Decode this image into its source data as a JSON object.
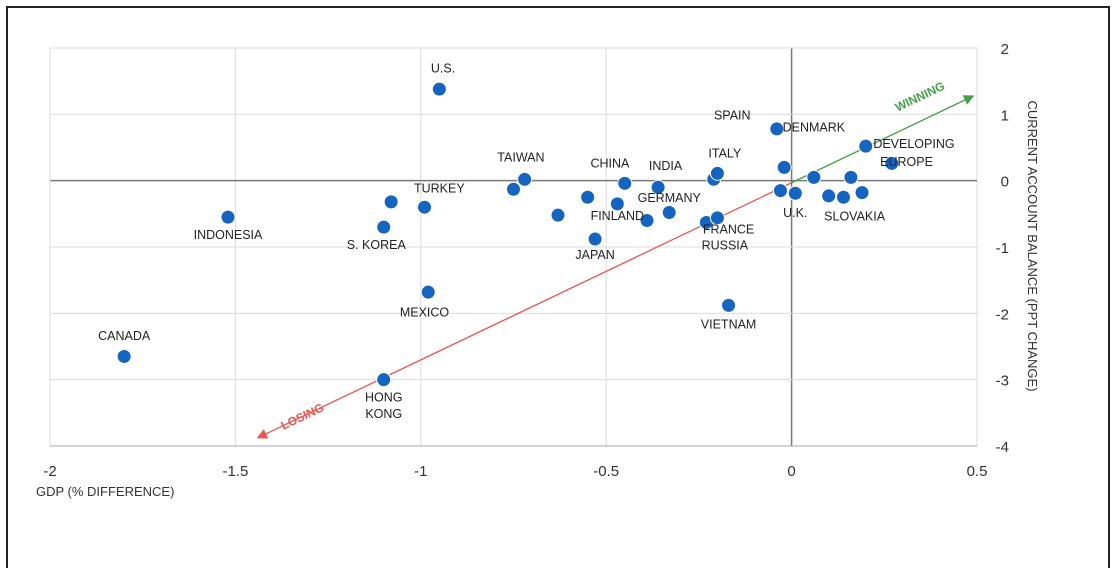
{
  "chart_data": {
    "type": "scatter",
    "xlabel": "GDP (% DIFFERENCE)",
    "ylabel": "CURRENT ACCOUNT BALANCE (PPT CHANGE)",
    "xlim": [
      -2,
      0.5
    ],
    "ylim": [
      -4,
      2
    ],
    "xticks": [
      -2,
      -1.5,
      -1,
      -0.5,
      0,
      0.5
    ],
    "xtick_labels": [
      "-2",
      "-1.5",
      "-1",
      "-0.5",
      "0",
      "0.5"
    ],
    "yticks": [
      2,
      1,
      0,
      -1,
      -2,
      -3,
      -4
    ],
    "ytick_labels": [
      "2",
      "1",
      "0",
      "-1",
      "-2",
      "-3",
      "-4"
    ],
    "grid": true,
    "point_color": "#1565c0",
    "points": [
      {
        "x": -1.8,
        "y": -2.65
      },
      {
        "x": -1.52,
        "y": -0.55
      },
      {
        "x": -1.1,
        "y": -0.7
      },
      {
        "x": -1.08,
        "y": -0.32
      },
      {
        "x": -0.99,
        "y": -0.4
      },
      {
        "x": -0.98,
        "y": -1.68
      },
      {
        "x": -0.95,
        "y": 1.38
      },
      {
        "x": -1.1,
        "y": -3.0
      },
      {
        "x": -0.75,
        "y": -0.13
      },
      {
        "x": -0.72,
        "y": 0.02
      },
      {
        "x": -0.63,
        "y": -0.52
      },
      {
        "x": -0.55,
        "y": -0.25
      },
      {
        "x": -0.53,
        "y": -0.88
      },
      {
        "x": -0.47,
        "y": -0.35
      },
      {
        "x": -0.45,
        "y": -0.04
      },
      {
        "x": -0.39,
        "y": -0.6
      },
      {
        "x": -0.36,
        "y": -0.1
      },
      {
        "x": -0.33,
        "y": -0.48
      },
      {
        "x": -0.23,
        "y": -0.63
      },
      {
        "x": -0.21,
        "y": 0.02
      },
      {
        "x": -0.2,
        "y": 0.11
      },
      {
        "x": -0.2,
        "y": -0.56
      },
      {
        "x": -0.17,
        "y": -1.88
      },
      {
        "x": -0.04,
        "y": 0.78
      },
      {
        "x": -0.03,
        "y": -0.15
      },
      {
        "x": -0.02,
        "y": 0.2
      },
      {
        "x": 0.01,
        "y": -0.19
      },
      {
        "x": 0.06,
        "y": 0.05
      },
      {
        "x": 0.1,
        "y": -0.23
      },
      {
        "x": 0.14,
        "y": -0.25
      },
      {
        "x": 0.16,
        "y": 0.05
      },
      {
        "x": 0.19,
        "y": -0.18
      },
      {
        "x": 0.2,
        "y": 0.52
      },
      {
        "x": 0.27,
        "y": 0.26
      }
    ],
    "labels": [
      {
        "text": "CANADA",
        "x": -1.8,
        "y": -2.4
      },
      {
        "text": "INDONESIA",
        "x": -1.52,
        "y": -0.88
      },
      {
        "text": "S. KOREA",
        "x": -1.12,
        "y": -1.03
      },
      {
        "text": "TURKEY",
        "x": -0.95,
        "y": -0.18
      },
      {
        "text": "MEXICO",
        "x": -0.99,
        "y": -2.05
      },
      {
        "text": "U.S.",
        "x": -0.94,
        "y": 1.63
      },
      {
        "text": "HONG",
        "x": -1.1,
        "y": -3.33
      },
      {
        "text": "KONG",
        "x": -1.1,
        "y": -3.58
      },
      {
        "text": "TAIWAN",
        "x": -0.73,
        "y": 0.29
      },
      {
        "text": "CHINA",
        "x": -0.49,
        "y": 0.2
      },
      {
        "text": "FINLAND",
        "x": -0.47,
        "y": -0.59
      },
      {
        "text": "JAPAN",
        "x": -0.53,
        "y": -1.18
      },
      {
        "text": "INDIA",
        "x": -0.34,
        "y": 0.16
      },
      {
        "text": "GERMANY",
        "x": -0.33,
        "y": -0.32
      },
      {
        "text": "ITALY",
        "x": -0.18,
        "y": 0.35
      },
      {
        "text": "FRANCE",
        "x": -0.17,
        "y": -0.8
      },
      {
        "text": "RUSSIA",
        "x": -0.18,
        "y": -1.04
      },
      {
        "text": "VIETNAM",
        "x": -0.17,
        "y": -2.23
      },
      {
        "text": "SPAIN",
        "x": -0.16,
        "y": 0.92
      },
      {
        "text": "DENMARK",
        "x": 0.06,
        "y": 0.74
      },
      {
        "text": "DEVELOPING",
        "x": 0.33,
        "y": 0.49
      },
      {
        "text": "EUROPE",
        "x": 0.31,
        "y": 0.22
      },
      {
        "text": "U.K.",
        "x": 0.01,
        "y": -0.55
      },
      {
        "text": "SLOVAKIA",
        "x": 0.17,
        "y": -0.6
      }
    ],
    "trend_arrow": {
      "start": [
        -1.43,
        -3.85
      ],
      "end": [
        0.48,
        1.25
      ],
      "losing_color": "#ef5350",
      "winning_color": "#43a047",
      "losing_text": "LOSING",
      "winning_text": "WINNING"
    }
  }
}
